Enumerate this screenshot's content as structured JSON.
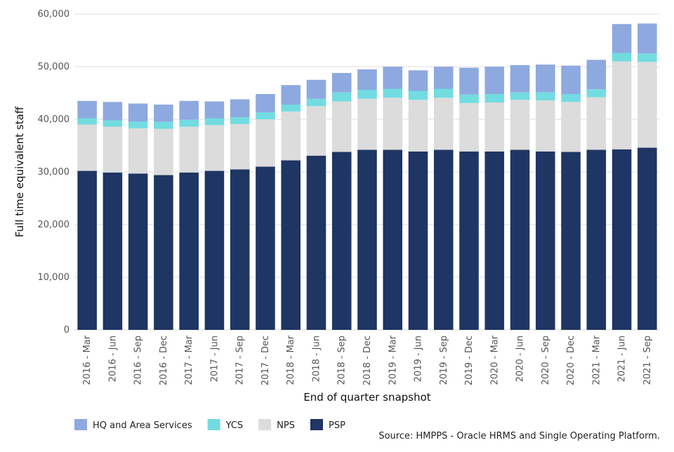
{
  "chart_data": {
    "type": "bar",
    "stacked": true,
    "xlabel": "End of quarter snapshot",
    "ylabel": "Full time equivalent staff",
    "ylim": [
      0,
      60000
    ],
    "yticks": [
      "0",
      "10,000",
      "20,000",
      "30,000",
      "40,000",
      "50,000",
      "60,000"
    ],
    "ytick_values": [
      0,
      10000,
      20000,
      30000,
      40000,
      50000,
      60000
    ],
    "grid": true,
    "legend_position": "bottom-left",
    "categories": [
      "2016 - Mar",
      "2016 - Jun",
      "2016 - Sep",
      "2016 - Dec",
      "2017 - Mar",
      "2017 - Jun",
      "2017 - Sep",
      "2017 - Dec",
      "2018 - Mar",
      "2018 - Jun",
      "2018 - Sep",
      "2018 - Dec",
      "2019 - Mar",
      "2019 - Jun",
      "2019 - Sep",
      "2019 - Dec",
      "2020 - Mar",
      "2020 - Jun",
      "2020 - Sep",
      "2020 - Dec",
      "2021 - Mar",
      "2021 - Jun",
      "2021 - Sep"
    ],
    "series": [
      {
        "name": "PSP",
        "color": "#1f3563",
        "values": [
          30200,
          29900,
          29700,
          29400,
          29900,
          30200,
          30500,
          31000,
          32200,
          33100,
          33800,
          34200,
          34200,
          33900,
          34200,
          33900,
          33900,
          34200,
          33900,
          33800,
          34200,
          34300,
          34600
        ]
      },
      {
        "name": "NPS",
        "color": "#dcdcdc",
        "values": [
          8800,
          8700,
          8600,
          8800,
          8700,
          8700,
          8600,
          9000,
          9300,
          9400,
          9600,
          9700,
          9900,
          9800,
          9900,
          9200,
          9300,
          9500,
          9700,
          9500,
          10000,
          16700,
          16300
        ]
      },
      {
        "name": "YCS",
        "color": "#72dce0",
        "values": [
          1200,
          1200,
          1300,
          1300,
          1300,
          1300,
          1300,
          1300,
          1300,
          1400,
          1700,
          1700,
          1700,
          1700,
          1700,
          1600,
          1600,
          1400,
          1500,
          1500,
          1500,
          1600,
          1600
        ]
      },
      {
        "name": "HQ and Area Services",
        "color": "#8ea9df",
        "values": [
          3300,
          3500,
          3400,
          3300,
          3600,
          3200,
          3400,
          3500,
          3700,
          3600,
          3700,
          3900,
          4200,
          3900,
          4200,
          5100,
          5200,
          5200,
          5300,
          5400,
          5600,
          5500,
          5700
        ]
      }
    ],
    "source": "Source: HMPPS - Oracle HRMS and Single Operating Platform."
  },
  "legend": [
    {
      "name": "HQ and Area Services",
      "color": "#8ea9df"
    },
    {
      "name": "YCS",
      "color": "#72dce0"
    },
    {
      "name": "NPS",
      "color": "#dcdcdc"
    },
    {
      "name": "PSP",
      "color": "#1f3563"
    }
  ]
}
